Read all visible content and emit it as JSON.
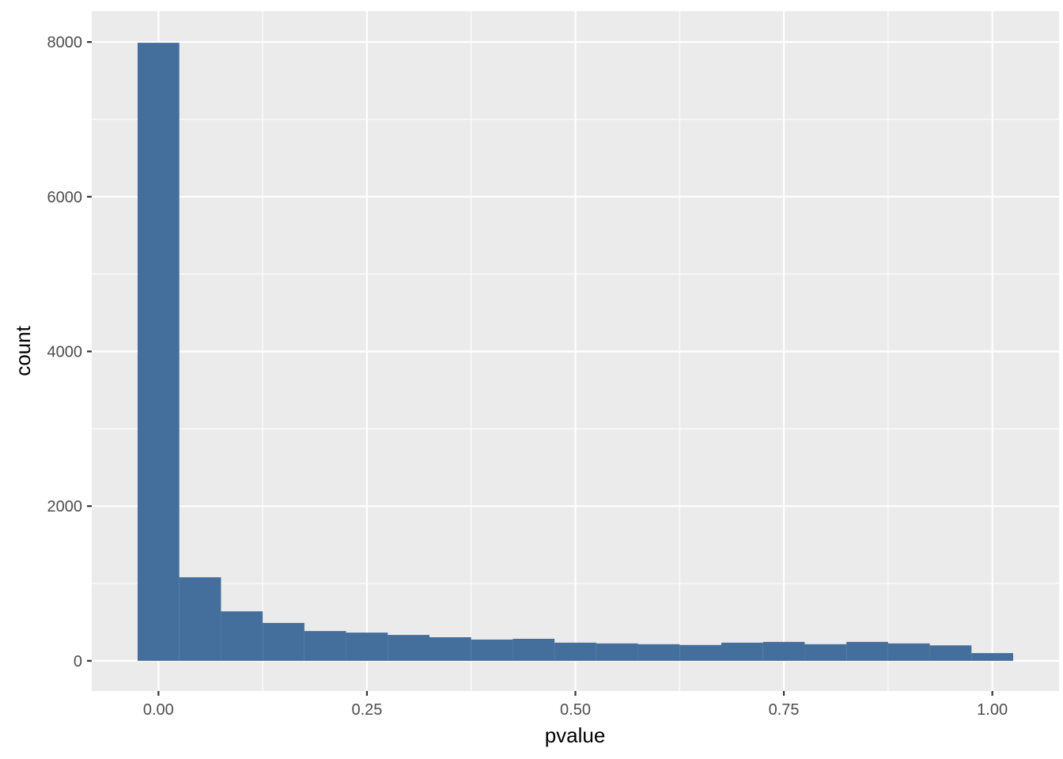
{
  "chart_data": {
    "type": "bar",
    "subtype": "histogram",
    "title": "",
    "xlabel": "pvalue",
    "ylabel": "count",
    "bin_width": 0.05,
    "bin_centers": [
      0.0,
      0.05,
      0.1,
      0.15,
      0.2,
      0.25,
      0.3,
      0.35,
      0.4,
      0.45,
      0.5,
      0.55,
      0.6,
      0.65,
      0.7,
      0.75,
      0.8,
      0.85,
      0.9,
      0.95,
      1.0
    ],
    "values": [
      7990,
      1080,
      640,
      490,
      385,
      365,
      335,
      305,
      275,
      285,
      235,
      225,
      215,
      205,
      235,
      245,
      215,
      245,
      225,
      200,
      100
    ],
    "xlim": [
      -0.08,
      1.08
    ],
    "ylim": [
      -390,
      8400
    ],
    "x_ticks": [
      0.0,
      0.25,
      0.5,
      0.75,
      1.0
    ],
    "x_tick_labels": [
      "0.00",
      "0.25",
      "0.50",
      "0.75",
      "1.00"
    ],
    "y_ticks": [
      0,
      2000,
      4000,
      6000,
      8000
    ],
    "y_tick_labels": [
      "0",
      "2000",
      "4000",
      "6000",
      "8000"
    ],
    "grid": true,
    "legend": "none",
    "colors": {
      "bar": "#446E9B",
      "panel_background": "#EBEBEB",
      "grid": "#FFFFFF"
    }
  }
}
